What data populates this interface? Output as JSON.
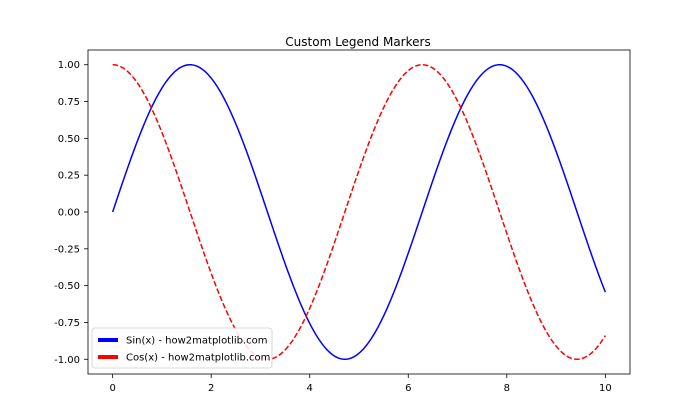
{
  "chart_data": {
    "type": "line",
    "title": "Custom Legend Markers",
    "xlabel": "",
    "ylabel": "",
    "xlim": [
      -0.5,
      10.5
    ],
    "ylim": [
      -1.1,
      1.1
    ],
    "grid": false,
    "legend_position": "lower-left",
    "x_ticks": [
      0,
      2,
      4,
      6,
      8,
      10
    ],
    "x_tick_labels": [
      "0",
      "2",
      "4",
      "6",
      "8",
      "10"
    ],
    "y_ticks": [
      1.0,
      0.75,
      0.5,
      0.25,
      0.0,
      -0.25,
      -0.5,
      -0.75,
      -1.0
    ],
    "y_tick_labels": [
      "1.00",
      "0.75",
      "0.50",
      "0.25",
      "0.00",
      "-0.25",
      "-0.50",
      "-0.75",
      "-1.00"
    ],
    "series": [
      {
        "name": "Sin(x) - how2matplotlib.com",
        "color": "#0000ff",
        "style": "solid",
        "x": [
          0.0,
          0.5,
          1.0,
          1.5,
          2.0,
          2.5,
          3.0,
          3.5,
          4.0,
          4.5,
          5.0,
          5.5,
          6.0,
          6.5,
          7.0,
          7.5,
          8.0,
          8.5,
          9.0,
          9.5,
          10.0
        ],
        "y": [
          0.0,
          0.479,
          0.841,
          0.997,
          0.909,
          0.598,
          0.141,
          -0.351,
          -0.757,
          -0.978,
          -0.959,
          -0.706,
          -0.279,
          0.215,
          0.657,
          0.938,
          0.989,
          0.798,
          0.412,
          -0.075,
          -0.544
        ]
      },
      {
        "name": "Cos(x) - how2matplotlib.com",
        "color": "#ff0000",
        "style": "dashed",
        "x": [
          0.0,
          0.5,
          1.0,
          1.5,
          2.0,
          2.5,
          3.0,
          3.5,
          4.0,
          4.5,
          5.0,
          5.5,
          6.0,
          6.5,
          7.0,
          7.5,
          8.0,
          8.5,
          9.0,
          9.5,
          10.0
        ],
        "y": [
          1.0,
          0.878,
          0.54,
          0.071,
          -0.416,
          -0.801,
          -0.99,
          -0.936,
          -0.654,
          -0.211,
          0.284,
          0.709,
          0.96,
          0.977,
          0.754,
          0.347,
          -0.146,
          -0.602,
          -0.911,
          -0.997,
          -0.839
        ]
      }
    ]
  }
}
